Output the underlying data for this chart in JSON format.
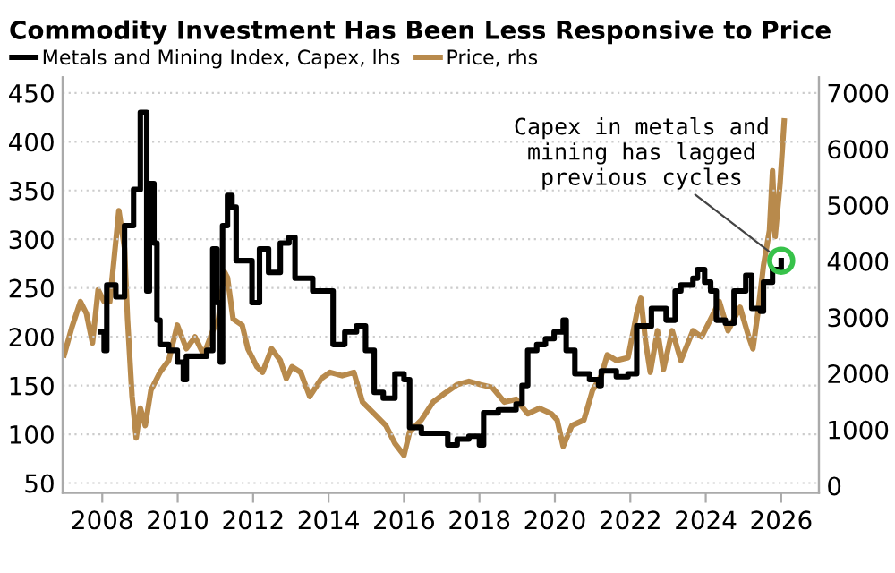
{
  "chart_data": {
    "type": "line",
    "title": "Commodity Investment Has Been Less Responsive to Price",
    "series": [
      {
        "name": "Metals and Mining Index, Capex, lhs",
        "color": "#000000",
        "type": "step",
        "x": [
          2007.97,
          2008.05,
          2008.12,
          2008.36,
          2008.59,
          2008.75,
          2008.83,
          2008.95,
          2009.01,
          2009.11,
          2009.18,
          2009.25,
          2009.37,
          2009.45,
          2009.53,
          2009.76,
          2009.99,
          2010.15,
          2010.23,
          2010.54,
          2010.77,
          2010.93,
          2011.04,
          2011.13,
          2011.19,
          2011.32,
          2011.44,
          2011.55,
          2011.79,
          2011.97,
          2012.17,
          2012.41,
          2012.72,
          2012.95,
          2013.11,
          2013.34,
          2013.58,
          2013.89,
          2014.12,
          2014.43,
          2014.74,
          2014.98,
          2015.21,
          2015.45,
          2015.76,
          2016.0,
          2016.15,
          2016.46,
          2016.93,
          2017.16,
          2017.41,
          2017.72,
          2018.0,
          2018.11,
          2018.5,
          2018.97,
          2019.13,
          2019.28,
          2019.52,
          2019.75,
          2019.98,
          2020.22,
          2020.3,
          2020.53,
          2020.92,
          2021.16,
          2021.23,
          2021.63,
          2021.94,
          2022.17,
          2022.56,
          2022.95,
          2023.19,
          2023.34,
          2023.66,
          2023.78,
          2023.97,
          2024.13,
          2024.28,
          2024.52,
          2024.75,
          2025.06,
          2025.22,
          2025.45,
          2025.53,
          2025.77,
          2026.0
        ],
        "values": [
          205,
          186,
          253,
          241,
          314,
          314,
          351,
          351,
          430,
          430,
          247,
          357,
          296,
          217,
          192,
          186,
          174,
          156,
          180,
          180,
          186,
          290,
          235,
          174,
          314,
          345,
          333,
          278,
          278,
          235,
          290,
          266,
          296,
          302,
          260,
          260,
          247,
          247,
          192,
          205,
          211,
          186,
          143,
          137,
          162,
          156,
          107,
          101,
          101,
          89,
          95,
          98,
          89,
          122,
          125,
          131,
          150,
          186,
          192,
          198,
          205,
          217,
          186,
          162,
          156,
          150,
          165,
          159,
          162,
          211,
          229,
          217,
          247,
          253,
          260,
          269,
          256,
          247,
          217,
          214,
          247,
          263,
          229,
          226,
          256,
          269,
          278
        ]
      },
      {
        "name": "Price, rhs",
        "color": "#b88a4c",
        "axis": "y2",
        "x": [
          2006.99,
          2007.19,
          2007.42,
          2007.58,
          2007.74,
          2007.89,
          2008.05,
          2008.2,
          2008.44,
          2008.59,
          2008.67,
          2008.79,
          2008.9,
          2009.01,
          2009.14,
          2009.29,
          2009.53,
          2009.76,
          2009.99,
          2010.23,
          2010.46,
          2010.69,
          2010.93,
          2011.08,
          2011.24,
          2011.32,
          2011.47,
          2011.71,
          2011.86,
          2012.1,
          2012.25,
          2012.49,
          2012.72,
          2012.88,
          2013.03,
          2013.26,
          2013.5,
          2013.81,
          2014.04,
          2014.36,
          2014.67,
          2014.9,
          2015.21,
          2015.52,
          2015.76,
          2016.0,
          2016.15,
          2016.46,
          2016.77,
          2017.09,
          2017.41,
          2017.72,
          2018.03,
          2018.34,
          2018.66,
          2018.97,
          2019.28,
          2019.59,
          2019.91,
          2020.06,
          2020.22,
          2020.45,
          2020.77,
          2021.0,
          2021.23,
          2021.39,
          2021.63,
          2021.94,
          2022.17,
          2022.28,
          2022.41,
          2022.53,
          2022.72,
          2022.88,
          2023.11,
          2023.34,
          2023.66,
          2023.89,
          2024.13,
          2024.36,
          2024.59,
          2024.91,
          2025.14,
          2025.25,
          2025.38,
          2025.53,
          2025.69,
          2025.77,
          2025.84,
          2025.97,
          2026.08
        ],
        "values": [
          2330,
          2810,
          3280,
          3070,
          2540,
          3490,
          3280,
          3280,
          4900,
          4230,
          2970,
          1590,
          850,
          1380,
          1070,
          1700,
          2020,
          2230,
          2860,
          2440,
          2650,
          2330,
          2760,
          2970,
          3810,
          3710,
          2970,
          2860,
          2440,
          2120,
          2020,
          2440,
          2230,
          1910,
          2120,
          2020,
          1590,
          1910,
          2020,
          1960,
          2020,
          1490,
          1280,
          1070,
          750,
          540,
          960,
          1170,
          1490,
          1650,
          1800,
          1860,
          1800,
          1750,
          1490,
          1540,
          1280,
          1380,
          1280,
          1170,
          700,
          1070,
          1170,
          1700,
          1960,
          2330,
          2230,
          2280,
          3070,
          3340,
          2540,
          2020,
          2760,
          2070,
          2760,
          2230,
          2760,
          2650,
          2970,
          3280,
          2760,
          3180,
          2650,
          2440,
          3070,
          3920,
          4550,
          5610,
          4440,
          5390,
          6500
        ]
      }
    ],
    "xlim": [
      2006.95,
      2027
    ],
    "xticks": [
      2008,
      2010,
      2012,
      2014,
      2016,
      2018,
      2020,
      2022,
      2024,
      2026
    ],
    "ylim": [
      40,
      466
    ],
    "yticks": [
      50,
      100,
      150,
      200,
      250,
      300,
      350,
      400,
      450
    ],
    "y2lim": [
      -127,
      7276
    ],
    "y2ticks": [
      0,
      1000,
      2000,
      3000,
      4000,
      5000,
      6000,
      7000
    ],
    "grid": "y",
    "legend": "top left",
    "annotations": [
      {
        "text": "Capex in metals and\nmining has lagged\nprevious cycles",
        "x": 2026.0,
        "y": 278
      }
    ]
  }
}
